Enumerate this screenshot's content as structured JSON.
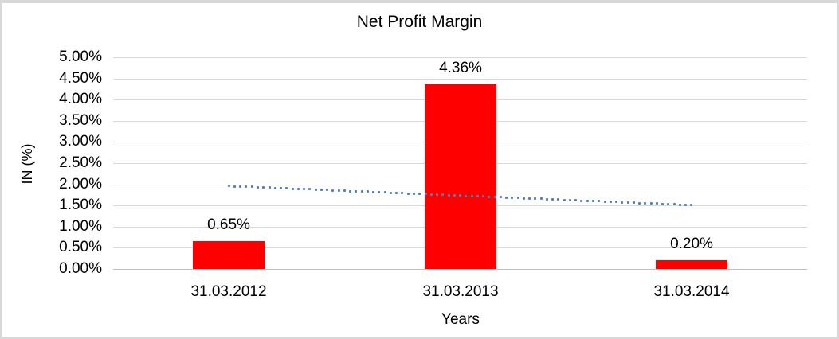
{
  "chart_data": {
    "type": "bar",
    "title": "Net Profit Margin",
    "xlabel": "Years",
    "ylabel": "IN (%)",
    "categories": [
      "31.03.2012",
      "31.03.2013",
      "31.03.2014"
    ],
    "values": [
      0.65,
      4.36,
      0.2
    ],
    "data_labels": [
      "0.65%",
      "4.36%",
      "0.20%"
    ],
    "ylim": [
      0,
      5
    ],
    "y_tick_step": 0.5,
    "y_tick_labels": [
      "5.00%",
      "4.50%",
      "4.00%",
      "3.50%",
      "3.00%",
      "2.50%",
      "2.00%",
      "1.50%",
      "1.00%",
      "0.50%",
      "0.00%"
    ],
    "grid": true,
    "legend": "none",
    "bar_color": "#FF0000",
    "trendline": {
      "type": "linear",
      "style": "dotted",
      "color": "#4F81BD",
      "start_value": 1.96,
      "end_value": 1.51
    },
    "colors": {
      "gridline": "#D9D9D9",
      "axis_line": "#BFBFBF",
      "text": "#000000",
      "background": "#FFFFFF",
      "frame_border": "#D8D8D8"
    }
  }
}
